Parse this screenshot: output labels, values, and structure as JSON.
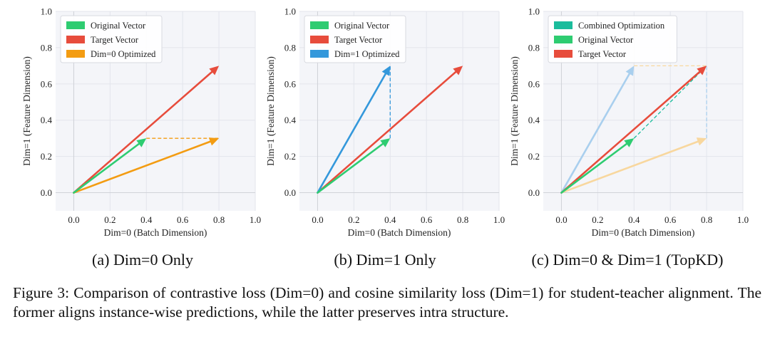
{
  "chart_data": [
    {
      "type": "line",
      "title": "",
      "xlabel": "Dim=0 (Batch Dimension)",
      "ylabel": "Dim=1 (Feature Dimension)",
      "xlim": [
        -0.1,
        1.0
      ],
      "ylim": [
        -0.1,
        1.0
      ],
      "xticks": [
        "0.0",
        "0.2",
        "0.4",
        "0.6",
        "0.8",
        "1.0"
      ],
      "yticks": [
        "0.0",
        "0.2",
        "0.4",
        "0.6",
        "0.8",
        "1.0"
      ],
      "grid": true,
      "legend_position": "top-left",
      "series": [
        {
          "name": "Original Vector",
          "color": "#2ecc71",
          "x": [
            0,
            0.4
          ],
          "y": [
            0,
            0.3
          ]
        },
        {
          "name": "Target Vector",
          "color": "#e74c3c",
          "x": [
            0,
            0.8
          ],
          "y": [
            0,
            0.7
          ]
        },
        {
          "name": "Dim=0 Optimized",
          "color": "#f39c12",
          "x": [
            0,
            0.8
          ],
          "y": [
            0,
            0.3
          ]
        }
      ],
      "guides": [
        {
          "color": "#f39c12",
          "x": [
            0.4,
            0.8
          ],
          "y": [
            0.3,
            0.3
          ]
        }
      ]
    },
    {
      "type": "line",
      "title": "",
      "xlabel": "Dim=0 (Batch Dimension)",
      "ylabel": "Dim=1 (Feature Dimension)",
      "xlim": [
        -0.1,
        1.0
      ],
      "ylim": [
        -0.1,
        1.0
      ],
      "xticks": [
        "0.0",
        "0.2",
        "0.4",
        "0.6",
        "0.8",
        "1.0"
      ],
      "yticks": [
        "0.0",
        "0.2",
        "0.4",
        "0.6",
        "0.8",
        "1.0"
      ],
      "grid": true,
      "legend_position": "top-left",
      "series": [
        {
          "name": "Original Vector",
          "color": "#2ecc71",
          "x": [
            0,
            0.4
          ],
          "y": [
            0,
            0.3
          ]
        },
        {
          "name": "Target Vector",
          "color": "#e74c3c",
          "x": [
            0,
            0.8
          ],
          "y": [
            0,
            0.7
          ]
        },
        {
          "name": "Dim=1 Optimized",
          "color": "#3498db",
          "x": [
            0,
            0.4
          ],
          "y": [
            0,
            0.7
          ]
        }
      ],
      "guides": [
        {
          "color": "#3498db",
          "x": [
            0.4,
            0.4
          ],
          "y": [
            0.3,
            0.7
          ]
        }
      ]
    },
    {
      "type": "line",
      "title": "",
      "xlabel": "Dim=0 (Batch Dimension)",
      "ylabel": "Dim=1 (Feature Dimension)",
      "xlim": [
        -0.1,
        1.0
      ],
      "ylim": [
        -0.1,
        1.0
      ],
      "xticks": [
        "0.0",
        "0.2",
        "0.4",
        "0.6",
        "0.8",
        "1.0"
      ],
      "yticks": [
        "0.0",
        "0.2",
        "0.4",
        "0.6",
        "0.8",
        "1.0"
      ],
      "grid": true,
      "legend_position": "top-left",
      "series": [
        {
          "name": "Combined Optimization",
          "color": "#1abc9c",
          "x": [
            0,
            0.8
          ],
          "y": [
            0,
            0.7
          ],
          "legend_only": true
        },
        {
          "name": "Original Vector",
          "color": "#2ecc71",
          "x": [
            0,
            0.4
          ],
          "y": [
            0,
            0.3
          ]
        },
        {
          "name": "Target Vector",
          "color": "#e74c3c",
          "x": [
            0,
            0.8
          ],
          "y": [
            0,
            0.7
          ]
        }
      ],
      "faded_vectors": [
        {
          "color": "#a9cfee",
          "x": [
            0,
            0.4
          ],
          "y": [
            0,
            0.7
          ]
        },
        {
          "color": "#f8d79e",
          "x": [
            0,
            0.8
          ],
          "y": [
            0,
            0.3
          ]
        }
      ],
      "guides": [
        {
          "color": "#f8d79e",
          "x": [
            0.4,
            0.8
          ],
          "y": [
            0.7,
            0.7
          ]
        },
        {
          "color": "#a9cfee",
          "x": [
            0.8,
            0.8
          ],
          "y": [
            0.3,
            0.7
          ]
        },
        {
          "color": "#1abc9c",
          "x": [
            0.4,
            0.8
          ],
          "y": [
            0.3,
            0.7
          ]
        }
      ]
    }
  ],
  "subcaptions": {
    "a": "(a) Dim=0 Only",
    "b": "(b) Dim=1 Only",
    "c": "(c) Dim=0 & Dim=1 (TopKD)"
  },
  "caption": "Figure 3: Comparison of contrastive loss (Dim=0) and cosine similarity loss (Dim=1) for student-teacher alignment. The former aligns instance-wise predictions, while the latter preserves intra structure."
}
